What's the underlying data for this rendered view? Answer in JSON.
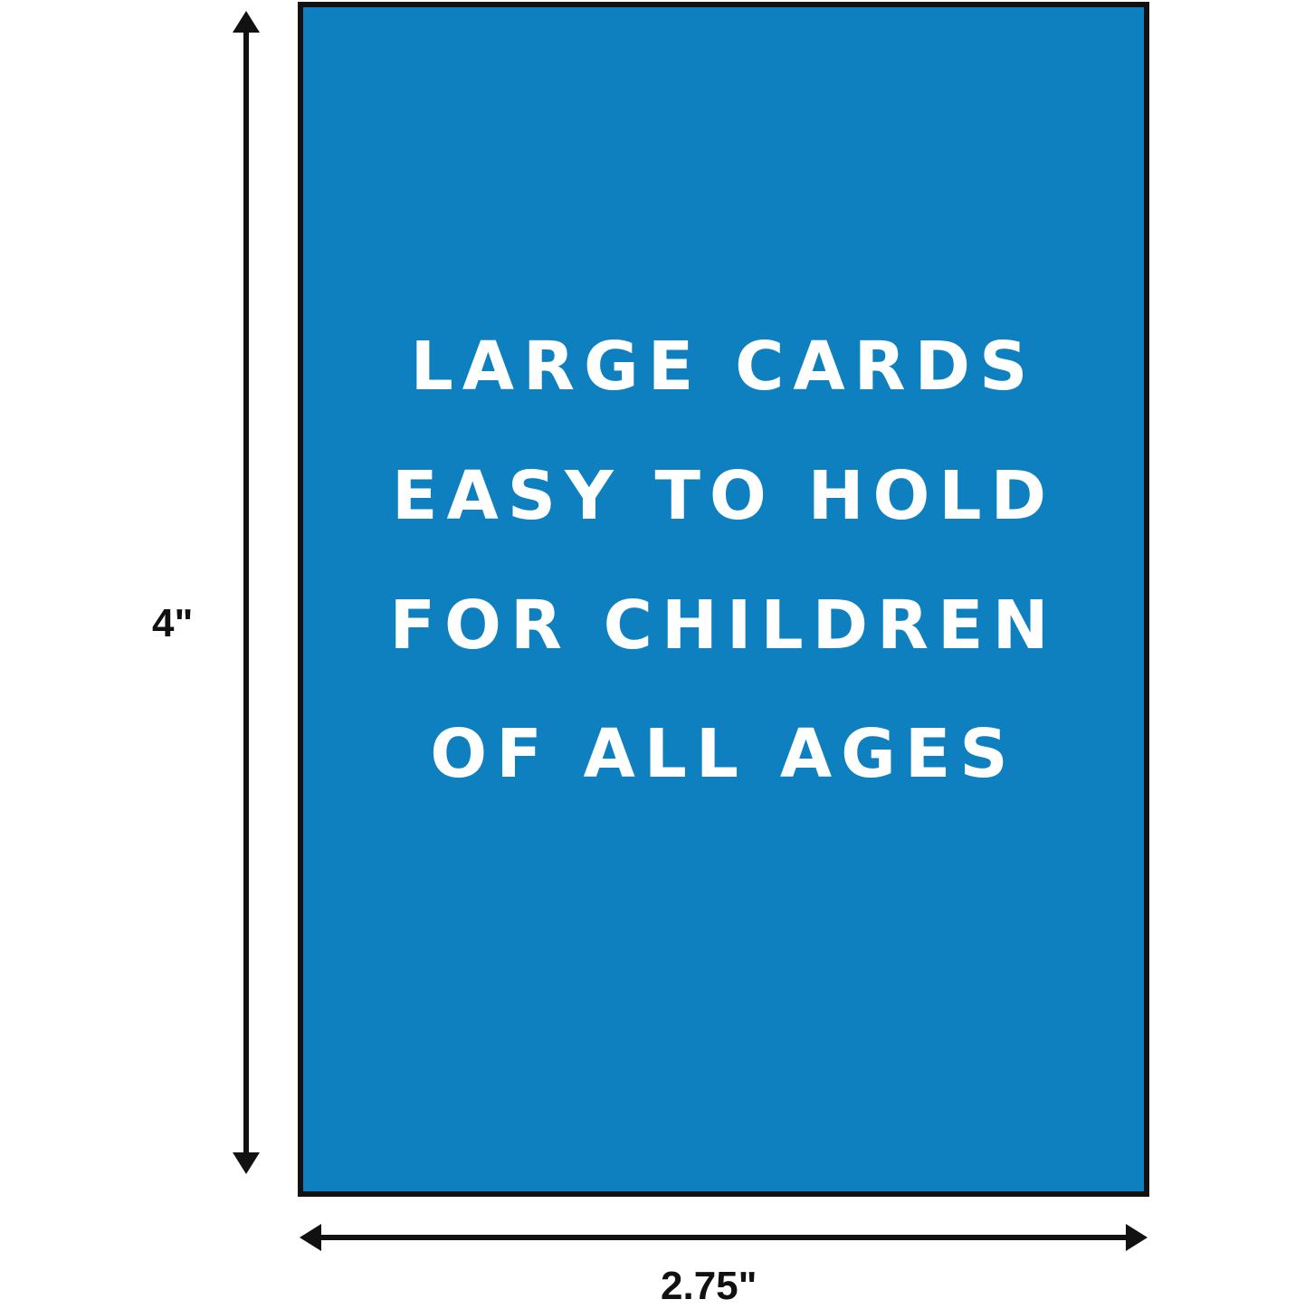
{
  "card": {
    "background_color": "#0e80bf",
    "lines": [
      "LARGE CARDS",
      "EASY TO HOLD",
      "FOR CHILDREN",
      "OF ALL AGES"
    ]
  },
  "dimensions": {
    "height_label": "4\"",
    "width_label": "2.75\""
  }
}
